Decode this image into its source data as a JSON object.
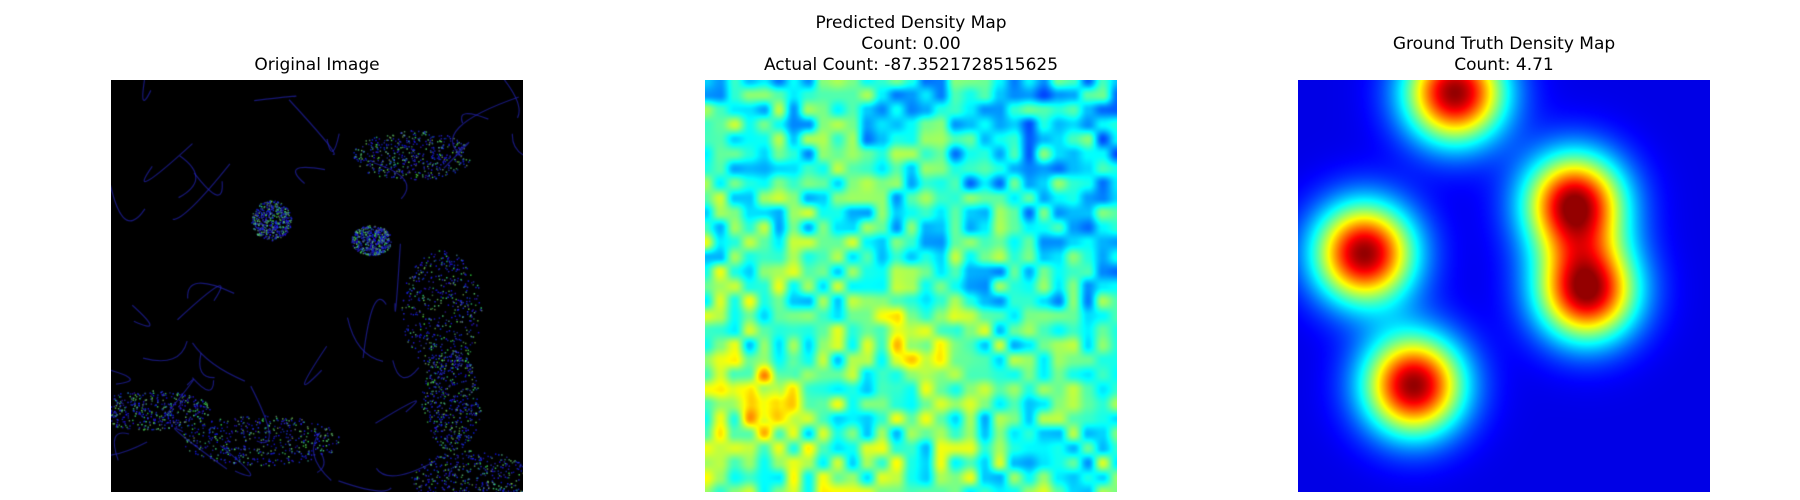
{
  "panels": [
    {
      "title_lines": [
        "Original Image"
      ]
    },
    {
      "title_lines": [
        "Predicted Density Map",
        "Count: 0.00",
        "Actual Count: -87.3521728515625"
      ]
    },
    {
      "title_lines": [
        "Ground Truth Density Map",
        "Count: 4.71"
      ]
    }
  ],
  "chart_data": [
    {
      "type": "image",
      "title": "Original Image",
      "description_visible": "mostly black photo with blue/green foliage-like highlights"
    },
    {
      "type": "heatmap",
      "title": "Predicted Density Map",
      "subtitle": [
        "Count: 0.00",
        "Actual Count: -87.3521728515625"
      ],
      "colormap": "jet",
      "axes": "off"
    },
    {
      "type": "heatmap",
      "title": "Ground Truth Density Map",
      "subtitle": [
        "Count: 4.71"
      ],
      "colormap": "jet",
      "axes": "off",
      "peaks": [
        {
          "x": 0.38,
          "y": 0.03
        },
        {
          "x": 0.67,
          "y": 0.3
        },
        {
          "x": 0.16,
          "y": 0.42
        },
        {
          "x": 0.7,
          "y": 0.51
        },
        {
          "x": 0.28,
          "y": 0.74
        }
      ],
      "background_color": "#00008b"
    }
  ]
}
